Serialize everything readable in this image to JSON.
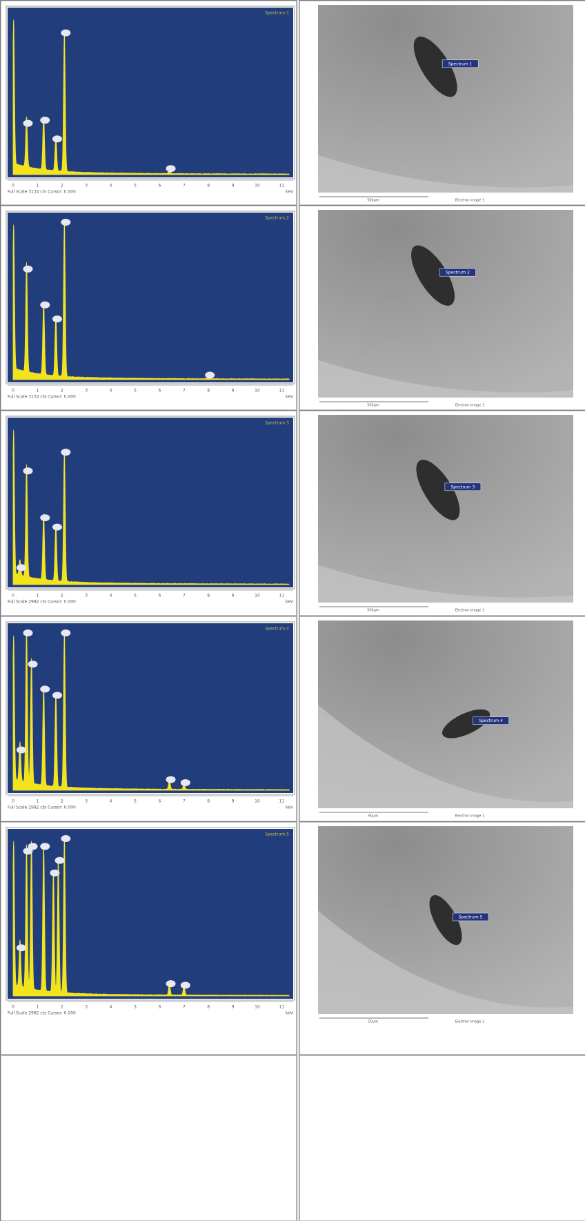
{
  "axis": {
    "ticks": [
      "0",
      "1",
      "2",
      "3",
      "4",
      "5",
      "6",
      "7",
      "8",
      "9",
      "10",
      "11"
    ],
    "unit": "keV"
  },
  "rows": [
    {
      "spectrum": {
        "title": "Spectrum 1",
        "footer": "Full Scale 3134 cts Cursor: 0.000"
      },
      "image": {
        "label": "Spectrum 1",
        "scale": "500µm",
        "caption": "Electron Image 1"
      }
    },
    {
      "spectrum": {
        "title": "Spectrum 2",
        "footer": "Full Scale 3134 cts Cursor: 0.000"
      },
      "image": {
        "label": "Spectrum 2",
        "scale": "500µm",
        "caption": "Electron Image 1"
      }
    },
    {
      "spectrum": {
        "title": "Spectrum 3",
        "footer": "Full Scale 2982 cts Cursor: 0.000"
      },
      "image": {
        "label": "Spectrum 3",
        "scale": "500µm",
        "caption": "Electron Image 1"
      }
    },
    {
      "spectrum": {
        "title": "Spectrum 4",
        "footer": "Full Scale 2982 cts Cursor: 0.000"
      },
      "image": {
        "label": "Spectrum 4",
        "scale": "50µm",
        "caption": "Electron Image 1"
      }
    },
    {
      "spectrum": {
        "title": "Spectrum 5",
        "footer": "Full Scale 2982 cts Cursor: 0.000"
      },
      "image": {
        "label": "Spectrum 5",
        "scale": "50µm",
        "caption": "Electron Image 1"
      }
    }
  ]
}
